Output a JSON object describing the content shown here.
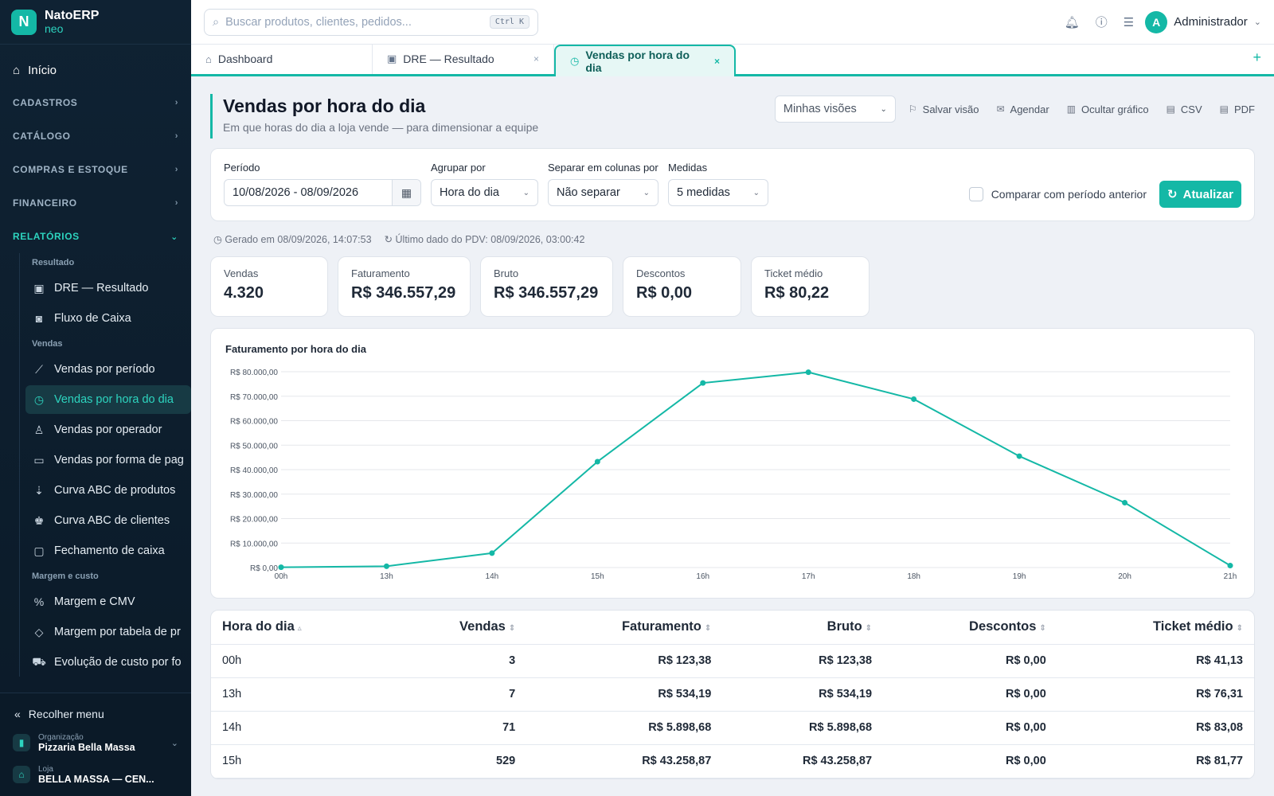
{
  "brand": {
    "logo_letter": "N",
    "name": "NatoERP",
    "sub": "neo"
  },
  "sidebar": {
    "home": "Início",
    "sections": [
      "CADASTROS",
      "CATÁLOGO",
      "COMPRAS E ESTOQUE",
      "FINANCEIRO"
    ],
    "reports_section": "RELATÓRIOS",
    "groups": [
      {
        "label": "Resultado",
        "items": [
          {
            "label": "DRE — Resultado",
            "icon": "briefcase-icon"
          },
          {
            "label": "Fluxo de Caixa",
            "icon": "cash-icon"
          }
        ]
      },
      {
        "label": "Vendas",
        "items": [
          {
            "label": "Vendas por período",
            "icon": "line-chart-icon"
          },
          {
            "label": "Vendas por hora do dia",
            "icon": "clock-icon",
            "active": true
          },
          {
            "label": "Vendas por operador",
            "icon": "user-icon"
          },
          {
            "label": "Vendas por forma de pag",
            "icon": "credit-card-icon"
          },
          {
            "label": "Curva ABC de produtos",
            "icon": "sort-icon"
          },
          {
            "label": "Curva ABC de clientes",
            "icon": "users-icon"
          },
          {
            "label": "Fechamento de caixa",
            "icon": "wallet-icon"
          }
        ]
      },
      {
        "label": "Margem e custo",
        "items": [
          {
            "label": "Margem e CMV",
            "icon": "percent-icon"
          },
          {
            "label": "Margem por tabela de pr",
            "icon": "tag-icon"
          },
          {
            "label": "Evolução de custo por fo",
            "icon": "truck-icon"
          }
        ]
      }
    ],
    "collapse": "Recolher menu",
    "org_label": "Organização",
    "org_value": "Pizzaria Bella Massa",
    "store_label": "Loja",
    "store_value": "BELLA MASSA — CEN..."
  },
  "topbar": {
    "search_placeholder": "Buscar produtos, clientes, pedidos...",
    "search_shortcut": "Ctrl K",
    "avatar_letter": "A",
    "user_name": "Administrador"
  },
  "tabs": [
    {
      "label": "Dashboard",
      "icon": "home-icon",
      "closable": false
    },
    {
      "label": "DRE — Resultado",
      "icon": "briefcase-icon",
      "closable": true
    },
    {
      "label": "Vendas por hora do dia",
      "icon": "clock-icon",
      "closable": true,
      "active": true
    }
  ],
  "page": {
    "title": "Vendas por hora do dia",
    "subtitle": "Em que horas do dia a loja vende — para dimensionar a equipe",
    "views_select": "Minhas visões",
    "actions": [
      "Salvar visão",
      "Agendar",
      "Ocultar gráfico",
      "CSV",
      "PDF"
    ]
  },
  "filters": {
    "period_label": "Período",
    "period_value": "10/08/2026 - 08/09/2026",
    "group_label": "Agrupar por",
    "group_value": "Hora do dia",
    "split_label": "Separar em colunas por",
    "split_value": "Não separar",
    "measures_label": "Medidas",
    "measures_value": "5 medidas",
    "compare_label": "Comparar com período anterior",
    "compare_checked": false,
    "update_button": "Atualizar"
  },
  "meta": {
    "generated": "Gerado em 08/09/2026, 14:07:53",
    "last_pdv": "Último dado do PDV: 08/09/2026, 03:00:42"
  },
  "kpis": [
    {
      "label": "Vendas",
      "value": "4.320"
    },
    {
      "label": "Faturamento",
      "value": "R$ 346.557,29"
    },
    {
      "label": "Bruto",
      "value": "R$ 346.557,29"
    },
    {
      "label": "Descontos",
      "value": "R$ 0,00"
    },
    {
      "label": "Ticket médio",
      "value": "R$ 80,22"
    }
  ],
  "chart_data": {
    "type": "line",
    "title": "Faturamento por hora do dia",
    "categories": [
      "00h",
      "13h",
      "14h",
      "15h",
      "16h",
      "17h",
      "18h",
      "19h",
      "20h",
      "21h"
    ],
    "series": [
      {
        "values": [
          123.38,
          534.19,
          5898.68,
          43258.87,
          75400,
          79800,
          68800,
          45500,
          26500,
          800
        ]
      }
    ],
    "ylim": [
      0,
      80000
    ],
    "y_ticks": [
      "R$ 0,00",
      "R$ 10.000,00",
      "R$ 20.000,00",
      "R$ 30.000,00",
      "R$ 40.000,00",
      "R$ 50.000,00",
      "R$ 60.000,00",
      "R$ 70.000,00",
      "R$ 80.000,00"
    ],
    "grid": true,
    "color": "#14b8a6"
  },
  "table": {
    "columns": [
      "Hora do dia",
      "Vendas",
      "Faturamento",
      "Bruto",
      "Descontos",
      "Ticket médio"
    ],
    "rows": [
      [
        "00h",
        "3",
        "R$ 123,38",
        "R$ 123,38",
        "R$ 0,00",
        "R$ 41,13"
      ],
      [
        "13h",
        "7",
        "R$ 534,19",
        "R$ 534,19",
        "R$ 0,00",
        "R$ 76,31"
      ],
      [
        "14h",
        "71",
        "R$ 5.898,68",
        "R$ 5.898,68",
        "R$ 0,00",
        "R$ 83,08"
      ],
      [
        "15h",
        "529",
        "R$ 43.258,87",
        "R$ 43.258,87",
        "R$ 0,00",
        "R$ 81,77"
      ]
    ]
  }
}
